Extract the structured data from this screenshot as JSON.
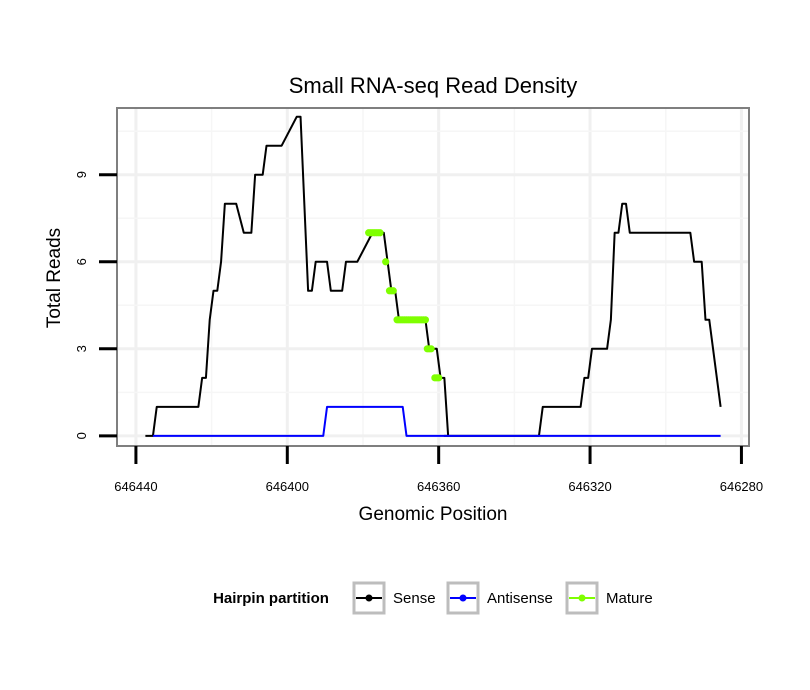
{
  "chart_data": {
    "type": "line",
    "title": "Small RNA-seq Read Density",
    "xlabel": "Genomic Position",
    "ylabel": "Total Reads",
    "x_reversed": true,
    "xlim": [
      646445,
      646278
    ],
    "ylim": [
      -0.35,
      11.3
    ],
    "x_ticks": [
      646440,
      646400,
      646360,
      646320,
      646280
    ],
    "x_tick_labels": [
      "646440",
      "646400",
      "646360",
      "646320",
      "646280"
    ],
    "y_ticks": [
      0,
      3,
      6,
      9
    ],
    "y_tick_labels": [
      "0",
      "3",
      "6",
      "9"
    ],
    "grid": true,
    "legend": {
      "title": "Hairpin partition",
      "position": "bottom",
      "entries": [
        "Sense",
        "Antisense",
        "Mature"
      ]
    },
    "series": [
      {
        "name": "Sense",
        "color": "#000000",
        "x": [
          646437.5,
          646435.5,
          646434.5,
          646423.5,
          646422.5,
          646421.5,
          646420.5,
          646419.5,
          646418.5,
          646417.5,
          646416.5,
          646415.5,
          646414.5,
          646413.5,
          646411.5,
          646409.5,
          646408.5,
          646406.5,
          646405.5,
          646404.5,
          646403.5,
          646401.5,
          646397.5,
          646396.5,
          646394.5,
          646393.5,
          646392.5,
          646391.5,
          646389.5,
          646388.5,
          646385.5,
          646384.5,
          646382.5,
          646381.5,
          646377.5,
          646376.5,
          646374.5,
          646373.5,
          646372.5,
          646371.5,
          646370.5,
          646369.5,
          646368.5,
          646367.5,
          646363.5,
          646362.5,
          646360.5,
          646359.5,
          646358.5,
          646357.5,
          646358.5,
          646333.5,
          646332.5,
          646331.5,
          646322.5,
          646321.5,
          646320.5,
          646319.5,
          646318.5,
          646315.5,
          646314.5,
          646313.5,
          646312.5,
          646311.5,
          646310.5,
          646309.5,
          646308.5,
          646307.5,
          646293.5,
          646292.5,
          646290.5,
          646289.5,
          646288.5,
          646287.5,
          646285.5
        ],
        "y": [
          0,
          0,
          1,
          1,
          2,
          2,
          4,
          5,
          5,
          6,
          8,
          8,
          8,
          8,
          7,
          7,
          9,
          9,
          10,
          10,
          10,
          10,
          11,
          11,
          5,
          5,
          6,
          6,
          6,
          5,
          5,
          6,
          6,
          6,
          7,
          7,
          7,
          6,
          5,
          5,
          4,
          4,
          4,
          4,
          4,
          3,
          3,
          2,
          2,
          0,
          0,
          0,
          1,
          1,
          1,
          2,
          2,
          3,
          3,
          3,
          4,
          7,
          7,
          8,
          8,
          7,
          7,
          7,
          7,
          6,
          6,
          4,
          4,
          3,
          1
        ]
      },
      {
        "name": "Antisense",
        "color": "#0000ff",
        "x": [
          646435.5,
          646390.5,
          646389.5,
          646369.5,
          646368.5,
          646285.5
        ],
        "y": [
          0,
          0,
          1,
          1,
          0,
          0
        ]
      },
      {
        "name": "Mature",
        "color": "#7fff00",
        "x": [
          646378.5,
          646378,
          646377.5,
          646377,
          646376.5,
          646376,
          646375.5,
          646374,
          646373,
          646372.5,
          646372,
          646371,
          646370.5,
          646370,
          646369.5,
          646369,
          646368.5,
          646368,
          646367.5,
          646367,
          646366.5,
          646366,
          646365.5,
          646365,
          646364.5,
          646364,
          646363.5,
          646363,
          646362.5,
          646362,
          646361,
          646360.5,
          646360
        ],
        "y": [
          7,
          7,
          7,
          7,
          7,
          7,
          7,
          6,
          5,
          5,
          5,
          4,
          4,
          4,
          4,
          4,
          4,
          4,
          4,
          4,
          4,
          4,
          4,
          4,
          4,
          4,
          4,
          3,
          3,
          3,
          2,
          2,
          2
        ]
      }
    ]
  }
}
